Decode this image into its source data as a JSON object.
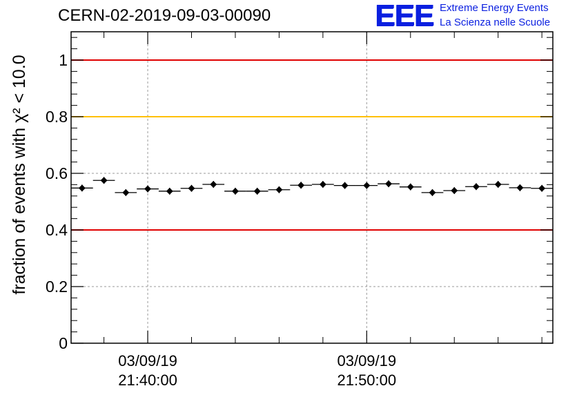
{
  "header": {
    "title": "CERN-02-2019-09-03-00090",
    "logo": {
      "letters": "EEE",
      "line1": "Extreme Energy Events",
      "line2": "La Scienza nelle Scuole",
      "color": "#0a1fe0"
    }
  },
  "chart_data": {
    "type": "scatter",
    "title": "CERN-02-2019-09-03-00090",
    "ylabel": "fraction of events with χ² < 10.0",
    "xlabel": "",
    "ylim": [
      0,
      1.1
    ],
    "y_ticks": [
      "0",
      "0.2",
      "0.4",
      "0.6",
      "0.8",
      "1"
    ],
    "x_ticks": [
      {
        "date": "03/09/19",
        "time": "21:40:00"
      },
      {
        "date": "03/09/19",
        "time": "21:50:00"
      }
    ],
    "grid": true,
    "reference_lines": [
      {
        "y": 1.0,
        "color": "#e00000"
      },
      {
        "y": 0.8,
        "color": "#ffc000"
      },
      {
        "y": 0.4,
        "color": "#e00000"
      }
    ],
    "series": [
      {
        "marker": "diamond",
        "color": "#000000",
        "x": [
          "21:37:00",
          "21:38:00",
          "21:39:00",
          "21:40:00",
          "21:41:00",
          "21:42:00",
          "21:43:00",
          "21:44:00",
          "21:45:00",
          "21:46:00",
          "21:47:00",
          "21:48:00",
          "21:49:00",
          "21:50:00",
          "21:51:00",
          "21:52:00",
          "21:53:00",
          "21:54:00",
          "21:55:00",
          "21:56:00",
          "21:57:00",
          "21:58:00"
        ],
        "values": [
          0.548,
          0.575,
          0.532,
          0.545,
          0.537,
          0.547,
          0.561,
          0.537,
          0.537,
          0.542,
          0.558,
          0.561,
          0.557,
          0.557,
          0.563,
          0.552,
          0.532,
          0.539,
          0.553,
          0.561,
          0.549,
          0.547
        ],
        "errors": [
          0.012,
          0.012,
          0.012,
          0.012,
          0.012,
          0.012,
          0.012,
          0.012,
          0.012,
          0.012,
          0.012,
          0.012,
          0.012,
          0.012,
          0.012,
          0.012,
          0.012,
          0.012,
          0.012,
          0.012,
          0.012,
          0.012
        ]
      }
    ]
  }
}
